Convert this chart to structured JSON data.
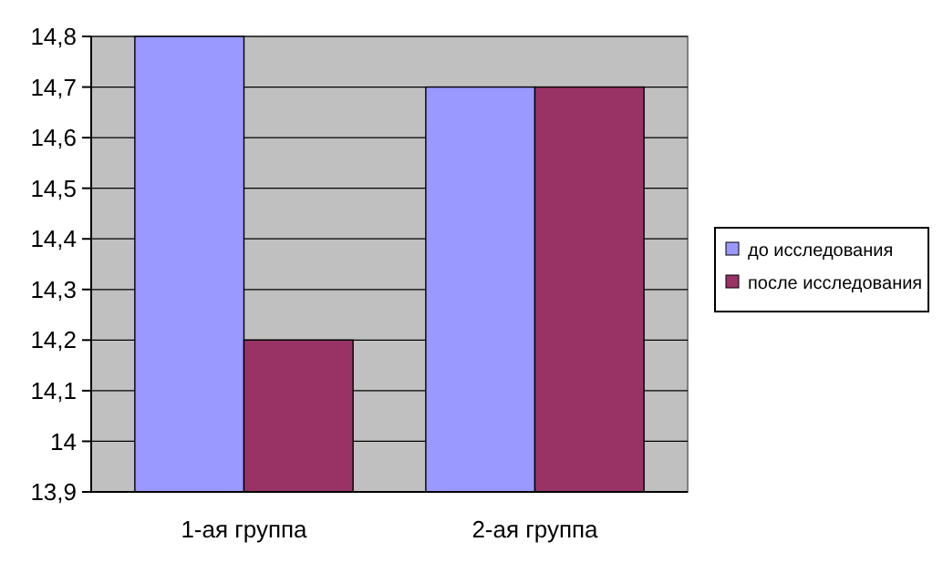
{
  "chart_data": {
    "type": "bar",
    "categories": [
      "1-ая группа",
      "2-ая группа"
    ],
    "series": [
      {
        "name": "до исследования",
        "color": "#9999ff",
        "values": [
          14.8,
          14.7
        ]
      },
      {
        "name": "после исследования",
        "color": "#993366",
        "values": [
          14.2,
          14.7
        ]
      }
    ],
    "ylim": [
      13.9,
      14.8
    ],
    "yticks": [
      {
        "value": 13.9,
        "label": "13,9"
      },
      {
        "value": 14,
        "label": "14"
      },
      {
        "value": 14.1,
        "label": "14,1"
      },
      {
        "value": 14.2,
        "label": "14,2"
      },
      {
        "value": 14.3,
        "label": "14,3"
      },
      {
        "value": 14.4,
        "label": "14,4"
      },
      {
        "value": 14.5,
        "label": "14,5"
      },
      {
        "value": 14.6,
        "label": "14,6"
      },
      {
        "value": 14.7,
        "label": "14,7"
      },
      {
        "value": 14.8,
        "label": "14,8"
      }
    ],
    "grid": "y",
    "legend": "right"
  }
}
